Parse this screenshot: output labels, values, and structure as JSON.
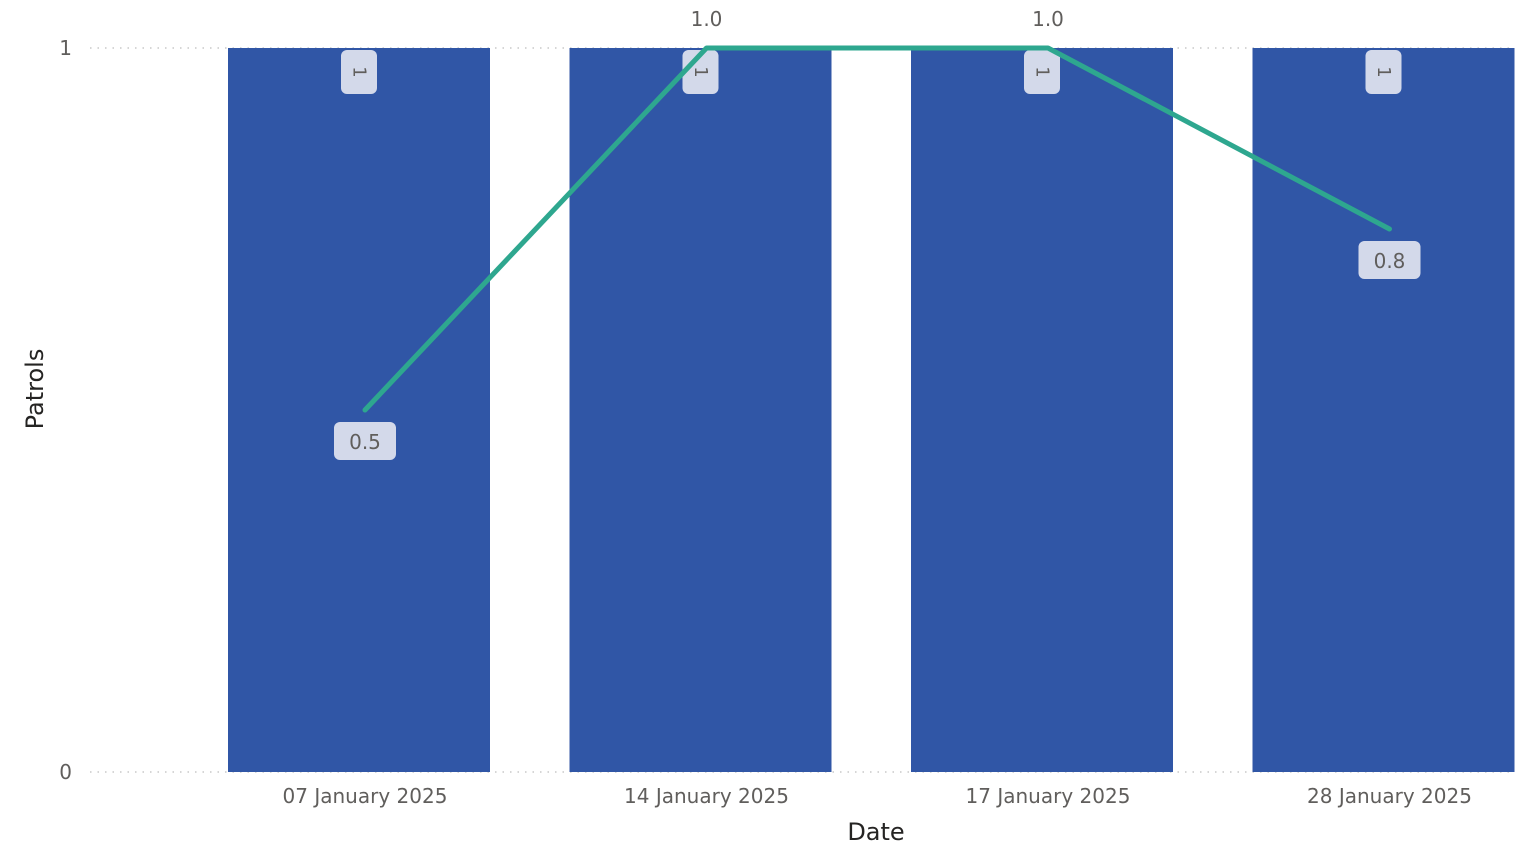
{
  "chart_data": {
    "type": "bar",
    "title": "",
    "xlabel": "Date",
    "ylabel": "Patrols",
    "categories": [
      "07 January 2025",
      "14 January 2025",
      "17 January 2025",
      "28 January 2025"
    ],
    "ylim": [
      0,
      1
    ],
    "yticks": [
      "0",
      "1"
    ],
    "series": [
      {
        "type": "bar",
        "values": [
          1,
          1,
          1,
          1
        ],
        "labels": [
          "1",
          "1",
          "1",
          "1"
        ],
        "color": "#3056A6"
      },
      {
        "type": "line",
        "values": [
          0.5,
          1.0,
          1.0,
          0.75
        ],
        "labels": [
          "0.5",
          "1.0",
          "1.0",
          "0.8"
        ],
        "color": "#2EA78F"
      }
    ],
    "grid": "dotted horizontal",
    "legend": "none"
  }
}
